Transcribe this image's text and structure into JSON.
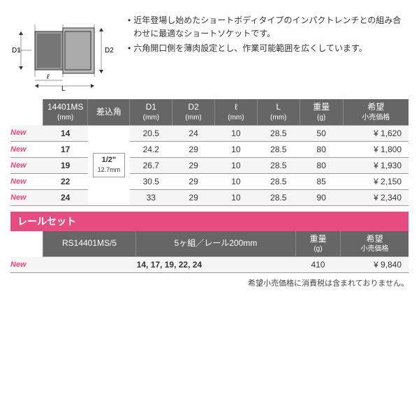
{
  "description": {
    "items": [
      "近年登場し始めたショートボディタイプのインパクトレンチとの組み合わせに最適なショートソケットです。",
      "六角開口側を薄肉設定とし、作業可能範囲を広くしています。"
    ]
  },
  "diagram": {
    "labels": {
      "D1": "D1",
      "D2": "D2",
      "l": "ℓ",
      "L": "L"
    }
  },
  "table1": {
    "headers": {
      "model": "14401MS",
      "model_unit": "(mm)",
      "drive": "差込角",
      "D1": "D1",
      "D1_unit": "(mm)",
      "D2": "D2",
      "D2_unit": "(mm)",
      "l": "ℓ",
      "l_unit": "(mm)",
      "L": "L",
      "L_unit": "(mm)",
      "weight": "重量",
      "weight_unit": "(g)",
      "price": "希望",
      "price2": "小売価格"
    },
    "drive": {
      "main": "1/2\"",
      "sub": "12.7mm"
    },
    "rows": [
      {
        "new": "New",
        "val": "14",
        "d1": "20.5",
        "d2": "24",
        "l": "10",
        "L": "28.5",
        "w": "50",
        "p": "¥ 1,620"
      },
      {
        "new": "New",
        "val": "17",
        "d1": "24.2",
        "d2": "29",
        "l": "10",
        "L": "28.5",
        "w": "80",
        "p": "¥ 1,800"
      },
      {
        "new": "New",
        "val": "19",
        "d1": "26.7",
        "d2": "29",
        "l": "10",
        "L": "28.5",
        "w": "80",
        "p": "¥ 1,930"
      },
      {
        "new": "New",
        "val": "22",
        "d1": "30.5",
        "d2": "29",
        "l": "10",
        "L": "28.5",
        "w": "85",
        "p": "¥ 2,150"
      },
      {
        "new": "New",
        "val": "24",
        "d1": "33",
        "d2": "29",
        "l": "10",
        "L": "28.5",
        "w": "90",
        "p": "¥ 2,340"
      }
    ]
  },
  "railSection": {
    "title": "レールセット",
    "headers": {
      "model": "RS14401MS/5",
      "desc": "5ヶ組／レール200mm",
      "weight": "重量",
      "weight_unit": "(g)",
      "price": "希望",
      "price2": "小売価格"
    },
    "row": {
      "new": "New",
      "vals": "14, 17, 19, 22, 24",
      "w": "410",
      "p": "¥ 9,840"
    }
  },
  "footnote": "希望小売価格に消費税は含まれておりません。"
}
